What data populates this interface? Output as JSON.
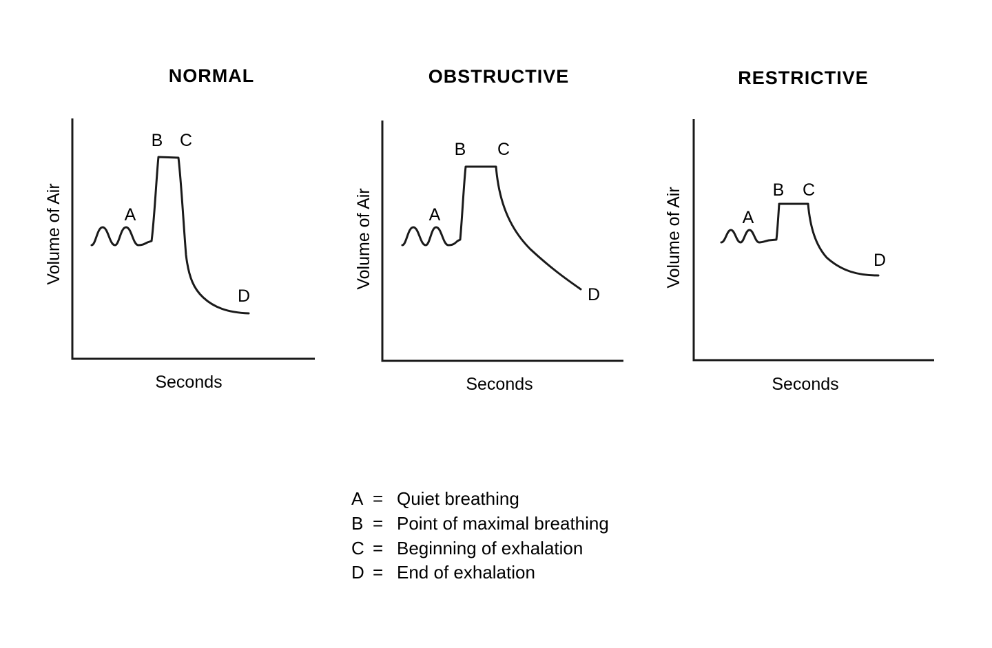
{
  "chart_data": [
    {
      "type": "line",
      "title": "NORMAL",
      "xlabel": "Seconds",
      "ylabel": "Volume of Air",
      "points": [
        {
          "label": "A"
        },
        {
          "label": "B"
        },
        {
          "label": "C"
        },
        {
          "label": "D"
        }
      ]
    },
    {
      "type": "line",
      "title": "OBSTRUCTIVE",
      "xlabel": "Seconds",
      "ylabel": "Volume of Air",
      "points": [
        {
          "label": "A"
        },
        {
          "label": "B"
        },
        {
          "label": "C"
        },
        {
          "label": "D"
        }
      ]
    },
    {
      "type": "line",
      "title": "RESTRICTIVE",
      "xlabel": "Seconds",
      "ylabel": "Volume of Air",
      "points": [
        {
          "label": "A"
        },
        {
          "label": "B"
        },
        {
          "label": "C"
        },
        {
          "label": "D"
        }
      ]
    }
  ],
  "legend": [
    {
      "key": "A",
      "sep": "=",
      "text": "Quiet breathing"
    },
    {
      "key": "B",
      "sep": "=",
      "text": "Point of maximal breathing"
    },
    {
      "key": "C",
      "sep": "=",
      "text": "Beginning of exhalation"
    },
    {
      "key": "D",
      "sep": "=",
      "text": "End of exhalation"
    }
  ]
}
